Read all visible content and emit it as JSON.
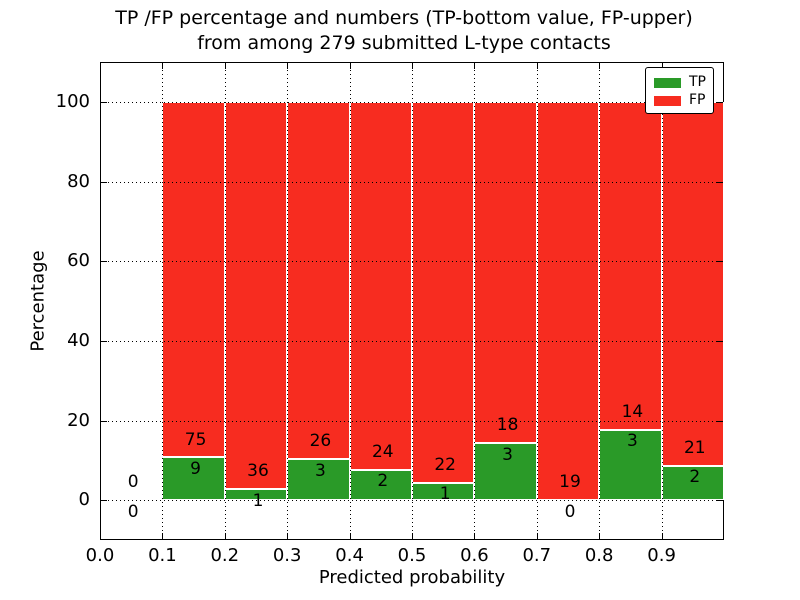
{
  "chart_data": {
    "type": "bar",
    "subtype": "stacked-percentage-histogram",
    "title_lines": [
      "TP /FP percentage and numbers (TP-bottom value, FP-upper)",
      "from among 279 submitted L-type contacts"
    ],
    "xlabel": "Predicted probability",
    "ylabel": "Percentage",
    "xlim": [
      0.0,
      1.0
    ],
    "ylim": [
      -10,
      110
    ],
    "x_ticks": [
      "0.0",
      "0.1",
      "0.2",
      "0.3",
      "0.4",
      "0.5",
      "0.6",
      "0.7",
      "0.8",
      "0.9"
    ],
    "y_ticks": [
      "0",
      "20",
      "40",
      "60",
      "80",
      "100"
    ],
    "y_tick_values": [
      0,
      20,
      40,
      60,
      80,
      100
    ],
    "grid": "dotted, drawn over bars",
    "total_contacts": 279,
    "series": [
      {
        "name": "TP",
        "color": "#2a9a28",
        "values_counts": [
          0,
          9,
          1,
          3,
          2,
          1,
          3,
          0,
          3,
          2
        ]
      },
      {
        "name": "FP",
        "color": "#f72c20",
        "values_counts": [
          0,
          75,
          36,
          26,
          24,
          22,
          18,
          19,
          14,
          21
        ]
      }
    ],
    "bins": [
      {
        "range": [
          0.0,
          0.1
        ],
        "tp": 0,
        "fp": 0,
        "tp_pct": null,
        "fp_pct": null
      },
      {
        "range": [
          0.1,
          0.2
        ],
        "tp": 9,
        "fp": 75,
        "tp_pct": 10.71,
        "fp_pct": 89.29
      },
      {
        "range": [
          0.2,
          0.3
        ],
        "tp": 1,
        "fp": 36,
        "tp_pct": 2.7,
        "fp_pct": 97.3
      },
      {
        "range": [
          0.3,
          0.4
        ],
        "tp": 3,
        "fp": 26,
        "tp_pct": 10.34,
        "fp_pct": 89.66
      },
      {
        "range": [
          0.4,
          0.5
        ],
        "tp": 2,
        "fp": 24,
        "tp_pct": 7.69,
        "fp_pct": 92.31
      },
      {
        "range": [
          0.5,
          0.6
        ],
        "tp": 1,
        "fp": 22,
        "tp_pct": 4.35,
        "fp_pct": 95.65
      },
      {
        "range": [
          0.6,
          0.7
        ],
        "tp": 3,
        "fp": 18,
        "tp_pct": 14.29,
        "fp_pct": 85.71
      },
      {
        "range": [
          0.7,
          0.8
        ],
        "tp": 0,
        "fp": 19,
        "tp_pct": 0.0,
        "fp_pct": 100.0
      },
      {
        "range": [
          0.8,
          0.9
        ],
        "tp": 3,
        "fp": 14,
        "tp_pct": 17.65,
        "fp_pct": 82.35
      },
      {
        "range": [
          0.9,
          1.0
        ],
        "tp": 2,
        "fp": 21,
        "tp_pct": 8.7,
        "fp_pct": 91.3
      }
    ],
    "legend": {
      "position": "upper right",
      "entries": [
        {
          "label": "TP",
          "color": "#2a9a28"
        },
        {
          "label": "FP",
          "color": "#f72c20"
        }
      ]
    }
  }
}
